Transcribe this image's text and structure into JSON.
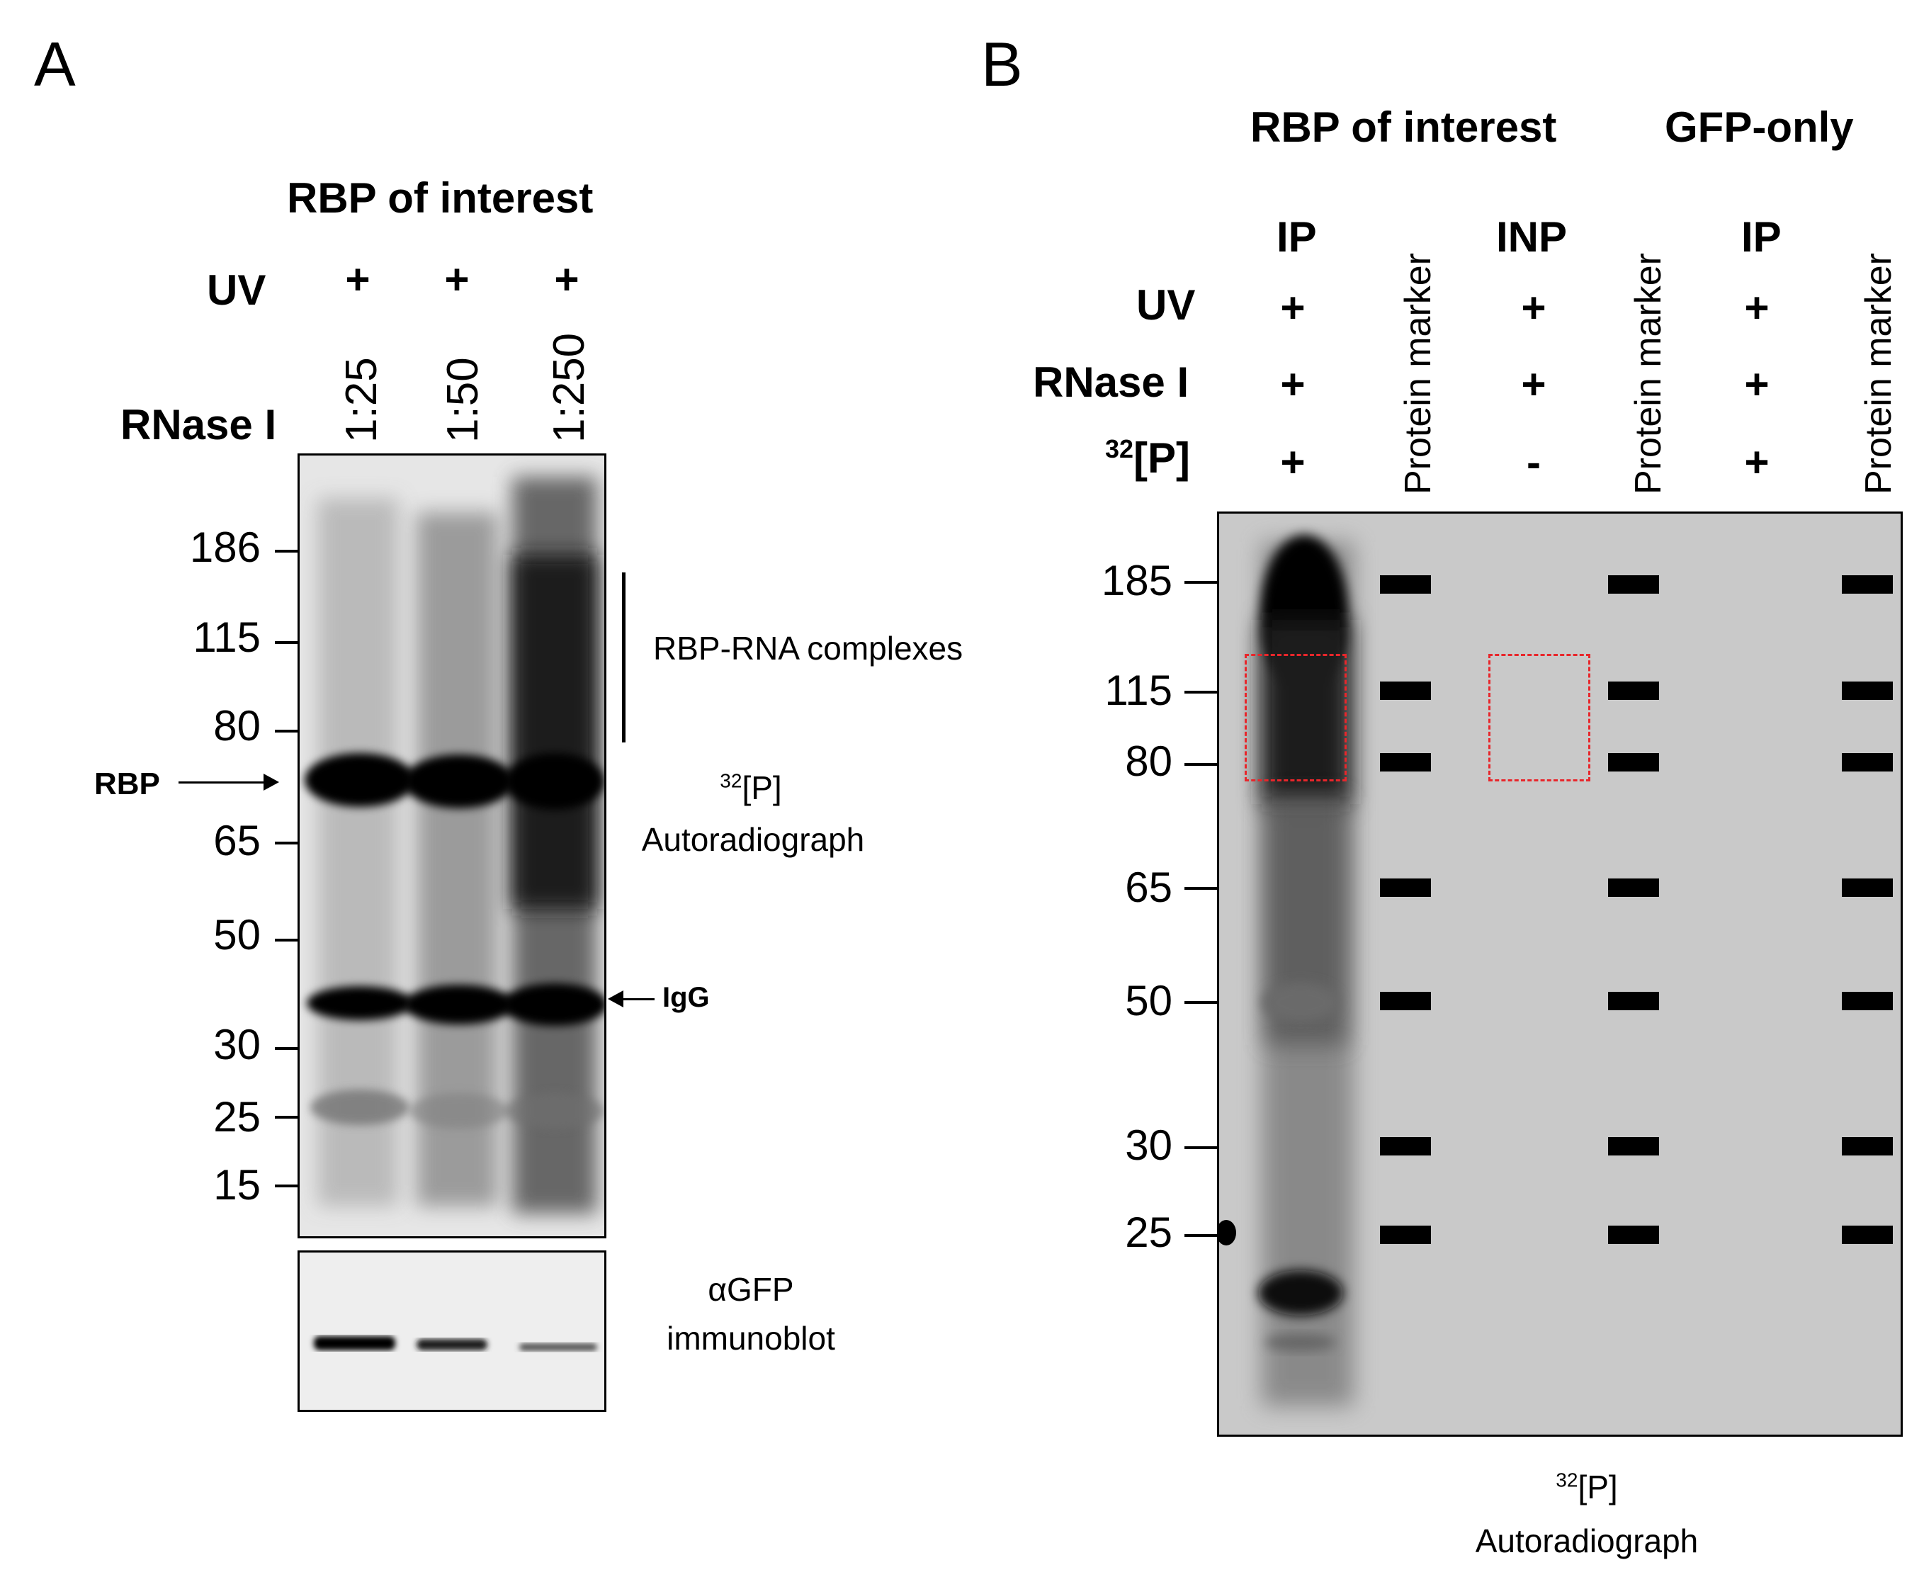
{
  "panel_a": {
    "letter": "A",
    "title": "RBP of interest",
    "row_uv": "UV",
    "row_rnase": "RNase I",
    "uv_values": [
      "+",
      "+",
      "+"
    ],
    "rnase_dilutions": [
      "1:25",
      "1:50",
      "1:250"
    ],
    "mw_markers": [
      "186",
      "115",
      "80",
      "65",
      "50",
      "30",
      "25",
      "15"
    ],
    "rbp_label": "RBP",
    "igg_label": "IgG",
    "complexes_label": "RBP-RNA complexes",
    "autorad_sup": "32",
    "autorad_iso": "[P]",
    "autorad_label": "Autoradiograph",
    "immunoblot_line1": "αGFP",
    "immunoblot_line2": "immunoblot"
  },
  "panel_b": {
    "letter": "B",
    "group_rbp": "RBP of interest",
    "group_gfp": "GFP-only",
    "row_uv": "UV",
    "row_rnase": "RNase I",
    "row_p32_sup": "32",
    "row_p32": "[P]",
    "lanes": [
      {
        "label": "IP",
        "uv": "+",
        "rnase": "+",
        "p32": "+"
      },
      {
        "label": "Protein marker"
      },
      {
        "label": "INP",
        "uv": "+",
        "rnase": "+",
        "p32": "-"
      },
      {
        "label": "Protein marker"
      },
      {
        "label": "IP",
        "uv": "+",
        "rnase": "+",
        "p32": "+"
      },
      {
        "label": "Protein marker"
      }
    ],
    "mw_markers": [
      "185",
      "115",
      "80",
      "65",
      "50",
      "30",
      "25"
    ],
    "autorad_sup": "32",
    "autorad_iso": "[P]",
    "autorad_label": "Autoradiograph"
  },
  "colors": {
    "highlight_box": "#e8262b",
    "gel_b_background": "#c9c9c9"
  }
}
